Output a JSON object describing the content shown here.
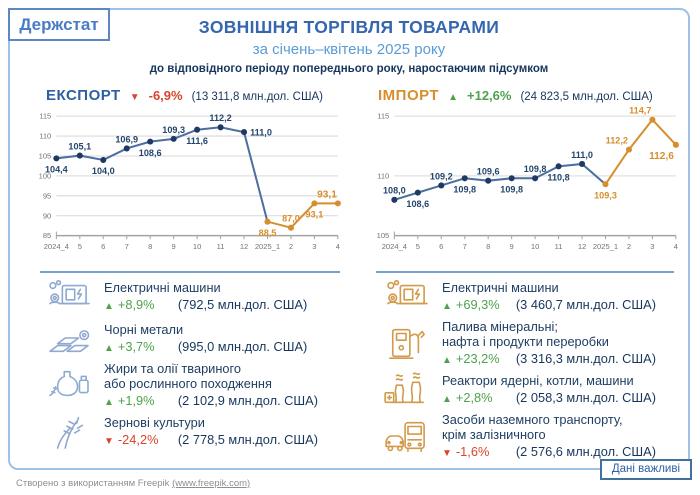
{
  "glyphs": {
    "up": "▲",
    "down": "▼"
  },
  "colors": {
    "accent_blue": "#2E5FA3",
    "accent_orange": "#D78E2E",
    "navy": "#1F3864",
    "green": "#4EA24E",
    "red": "#D8442C",
    "card_border": "#9CC2E5"
  },
  "header": {
    "logo": "Держстат",
    "title": "ЗОВНІШНЯ ТОРГІВЛЯ ТОВАРАМИ",
    "subtitle": "за січень–квітень 2025 року",
    "note": "до відповідного періоду попереднього року, наростаючим підсумком"
  },
  "export_section": {
    "label": "ЕКСПОРТ",
    "change": "-6,9%",
    "amount": "(13 311,8 млн.дол. США)",
    "items": [
      {
        "icon": "electric-machines-icon",
        "name": "Електричні машини",
        "change": "+8,9%",
        "amount": "(792,5 млн.дол. США)"
      },
      {
        "icon": "ferrous-metals-icon",
        "name": "Чорні метали",
        "change": "+3,7%",
        "amount": "(995,0 млн.дол. США)"
      },
      {
        "icon": "fats-oils-icon",
        "name": "Жири та олії твариного",
        "name2": "або рослинного походження",
        "change": "+1,9%",
        "amount": "(2 102,9 млн.дол. США)"
      },
      {
        "icon": "cereals-icon",
        "name": "Зернові культури",
        "change": "-24,2%",
        "amount": "(2 778,5 млн.дол. США)"
      }
    ]
  },
  "import_section": {
    "label": "ІМПОРТ",
    "change": "+12,6%",
    "amount": "(24 823,5 млн.дол. США)",
    "items": [
      {
        "icon": "electric-machines-icon",
        "name": "Електричні машини",
        "change": "+69,3%",
        "amount": "(3 460,7 млн.дол. США)"
      },
      {
        "icon": "fuel-pump-icon",
        "name": "Палива мінеральні;",
        "name2": "нафта і продукти переробки",
        "change": "+23,2%",
        "amount": "(3 316,3 млн.дол. США)"
      },
      {
        "icon": "nuclear-reactors-icon",
        "name": "Реактори ядерні, котли, машини",
        "change": "+2,8%",
        "amount": "(2 058,3 млн.дол. США)"
      },
      {
        "icon": "ground-transport-icon",
        "name": "Засоби наземного транспорту,",
        "name2": "крім залізничного",
        "change": "-1,6%",
        "amount": "(2 576,6 млн.дол. США)"
      }
    ]
  },
  "chart_data": [
    {
      "type": "line",
      "title": "ЕКСПОРТ",
      "categories": [
        "2024_4",
        "5",
        "6",
        "7",
        "8",
        "9",
        "10",
        "11",
        "12",
        "2025_1",
        "2",
        "3",
        "4"
      ],
      "values": [
        104.4,
        105.1,
        104.0,
        106.9,
        108.6,
        109.3,
        111.6,
        112.2,
        111.0,
        88.5,
        87.0,
        93.1,
        93.1
      ],
      "point_labels": [
        "104,4",
        "105,1",
        "104,0",
        "106,9",
        "108,6",
        "109,3",
        "111,6",
        "112,2",
        "111,0",
        "88,5",
        "87,0",
        "93,1",
        "93,1"
      ],
      "label_pos": [
        "below",
        "above",
        "below",
        "above",
        "below",
        "above",
        "below",
        "above",
        "right",
        "below",
        "above",
        "below",
        "above-left"
      ],
      "ylim": [
        85,
        115
      ],
      "ytick_step": 5,
      "split_index": 9,
      "series": [
        {
          "name": "2024"
        },
        {
          "name": "2025"
        }
      ],
      "series_colors": {
        "line_2024": "#4C6F9F",
        "marker_2024": "#1F3864",
        "line_2025": "#D78E2E"
      },
      "label_colors": {
        "c2024": "#24456E",
        "c2025": "#D78E2E"
      },
      "grid": true,
      "legend": "none",
      "bold_last": true
    },
    {
      "type": "line",
      "title": "ІМПОРТ",
      "categories": [
        "2024_4",
        "5",
        "6",
        "7",
        "8",
        "9",
        "10",
        "11",
        "12",
        "2025_1",
        "2",
        "3",
        "4"
      ],
      "values": [
        108.0,
        108.6,
        109.2,
        109.8,
        109.6,
        109.8,
        109.8,
        110.8,
        111.0,
        109.3,
        112.2,
        114.7,
        112.6
      ],
      "point_labels": [
        "108,0",
        "108,6",
        "109,2",
        "109,8",
        "109,6",
        "109,8",
        "109,8",
        "110,8",
        "111,0",
        "109,3",
        "112,2",
        "114,7",
        "112,6"
      ],
      "label_pos": [
        "above",
        "below",
        "above",
        "below",
        "above",
        "below",
        "above",
        "below",
        "above",
        "below",
        "above-left",
        "above-left",
        "below-left"
      ],
      "ylim": [
        105,
        115
      ],
      "ytick_step": 5,
      "split_index": 9,
      "series": [
        {
          "name": "2024"
        },
        {
          "name": "2025"
        }
      ],
      "series_colors": {
        "line_2024": "#4C6F9F",
        "marker_2024": "#1F3864",
        "line_2025": "#D78E2E"
      },
      "label_colors": {
        "c2024": "#24456E",
        "c2025": "#D78E2E"
      },
      "grid": true,
      "legend": "none",
      "bold_last": true
    }
  ],
  "badge": "Дані важливі",
  "footer": {
    "text": "Створено з використанням Freepik",
    "link": "(www.freepik.com)"
  }
}
